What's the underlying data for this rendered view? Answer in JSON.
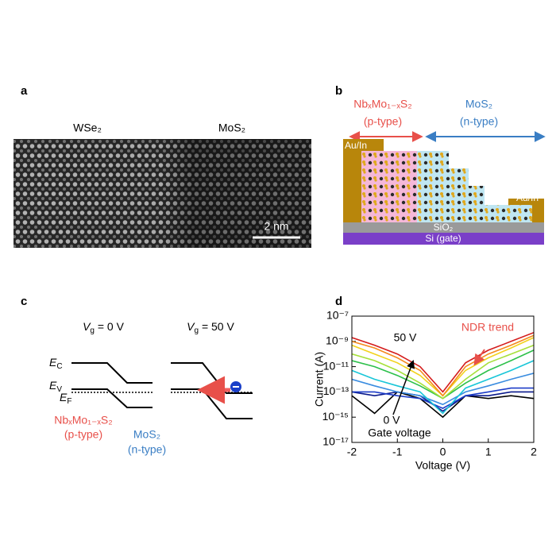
{
  "panels": {
    "a": {
      "label": "a",
      "left": "WSe₂",
      "right": "MoS₂",
      "scale": "2 nm"
    },
    "b": {
      "label": "b",
      "p_name": "NbₓMo₁₋ₓS₂",
      "p_type": "(p-type)",
      "n_name": "MoS₂",
      "n_type": "(n-type)",
      "contact_left": "Au/In",
      "contact_right": "Au/In",
      "oxide": "SiO₂",
      "gate": "Si (gate)"
    },
    "c": {
      "label": "c",
      "vg0": {
        "main": "V",
        "sub": "g",
        "rest": " = 0 V"
      },
      "vg50": {
        "main": "V",
        "sub": "g",
        "rest": " = 50 V"
      },
      "ec": {
        "main": "E",
        "sub": "C"
      },
      "ev": {
        "main": "E",
        "sub": "V"
      },
      "ef": {
        "main": "E",
        "sub": "F"
      },
      "p_name": "NbₓMo₁₋ₓS₂",
      "p_type": "(p-type)",
      "n_name": "MoS₂",
      "n_type": "(n-type)"
    },
    "d": {
      "label": "d"
    }
  },
  "chart_data": {
    "type": "line",
    "log_y": true,
    "x_label": "Voltage (V)",
    "y_label": "Current (A)",
    "annotations": {
      "high": "50 V",
      "low": "0 V",
      "gate": "Gate voltage",
      "ndr": "NDR trend"
    },
    "xlim": [
      -2,
      2
    ],
    "xticks": [
      -2,
      -1,
      0,
      1,
      2
    ],
    "ylim": [
      1e-17,
      1e-07
    ],
    "yticks": [
      {
        "value": 1e-17,
        "label": "10⁻¹⁷"
      },
      {
        "value": 1e-15,
        "label": "10⁻¹⁵"
      },
      {
        "value": 1e-13,
        "label": "10⁻¹³"
      },
      {
        "value": 1e-11,
        "label": "10⁻¹¹"
      },
      {
        "value": 1e-09,
        "label": "10⁻⁹"
      },
      {
        "value": 1e-07,
        "label": "10⁻⁷"
      }
    ],
    "x": [
      -2,
      -1.5,
      -1,
      -0.5,
      0,
      0.5,
      1,
      1.5,
      2
    ],
    "series": [
      {
        "color": "#000000",
        "values": [
          5e-14,
          2e-15,
          1e-13,
          3e-14,
          1e-15,
          5e-14,
          3e-14,
          5e-14,
          3e-14
        ]
      },
      {
        "color": "#0a1a8c",
        "values": [
          1e-13,
          5e-14,
          1e-13,
          5e-14,
          3e-15,
          5e-14,
          5e-14,
          1e-13,
          1e-13
        ]
      },
      {
        "color": "#1c3cc8",
        "values": [
          1e-13,
          1e-13,
          5e-14,
          3e-14,
          5e-15,
          5e-14,
          1e-13,
          2e-13,
          2e-13
        ]
      },
      {
        "color": "#3a8ce0",
        "values": [
          1e-12,
          3e-13,
          1e-13,
          5e-14,
          1e-14,
          1e-13,
          3e-13,
          1e-12,
          3e-12
        ]
      },
      {
        "color": "#19c6d8",
        "values": [
          5e-12,
          1e-12,
          3e-13,
          1e-13,
          2e-15,
          2e-13,
          1e-12,
          5e-12,
          3e-11
        ]
      },
      {
        "color": "#2cc04a",
        "values": [
          3e-11,
          1e-11,
          2e-12,
          3e-13,
          3e-14,
          5e-13,
          5e-12,
          3e-11,
          2e-10
        ]
      },
      {
        "color": "#a6e03a",
        "values": [
          1e-10,
          3e-11,
          5e-12,
          5e-13,
          3e-14,
          1e-12,
          2e-11,
          1e-10,
          5e-10
        ]
      },
      {
        "color": "#f2d21c",
        "values": [
          5e-10,
          1e-10,
          2e-11,
          2e-12,
          5e-14,
          5e-12,
          5e-11,
          3e-10,
          2e-09
        ]
      },
      {
        "color": "#f58a1e",
        "values": [
          1e-09,
          3e-10,
          5e-11,
          5e-12,
          5e-14,
          1e-11,
          1e-10,
          5e-10,
          3e-09
        ]
      },
      {
        "color": "#d41c1c",
        "values": [
          2e-09,
          5e-10,
          1e-10,
          1e-11,
          1e-13,
          2e-11,
          2e-10,
          1e-09,
          5e-09
        ]
      }
    ]
  }
}
